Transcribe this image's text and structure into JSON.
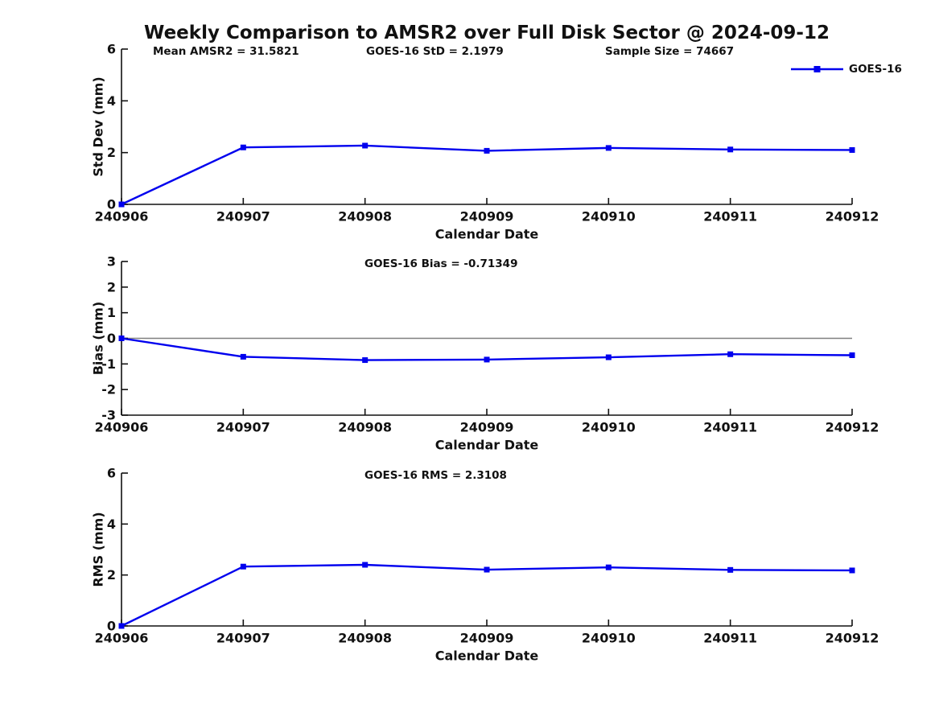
{
  "figure": {
    "title": "Weekly Comparison to AMSR2 over Full Disk Sector @ 2024-09-12",
    "background_color": "#ffffff",
    "series_color": "#0000ee",
    "axis_color": "#111111",
    "zero_line_color": "#808080",
    "legend": {
      "label": "GOES-16",
      "marker": "square",
      "position": "top-right"
    }
  },
  "chart_data": [
    {
      "type": "line",
      "ylabel": "Std Dev (mm)",
      "xlabel": "Calendar Date",
      "ylim": [
        0,
        6
      ],
      "yticks": [
        0,
        2,
        4,
        6
      ],
      "categories": [
        "240906",
        "240907",
        "240908",
        "240909",
        "240910",
        "240911",
        "240912"
      ],
      "annotations": [
        "Mean AMSR2 = 31.5821",
        "GOES-16 StD = 2.1979",
        "Sample Size = 74667"
      ],
      "series": [
        {
          "name": "GOES-16",
          "marker": "square",
          "values": [
            0,
            2.2,
            2.27,
            2.07,
            2.18,
            2.12,
            2.1
          ]
        }
      ],
      "legend_visible": true,
      "zero_line": false,
      "grid": false
    },
    {
      "type": "line",
      "ylabel": "Bias (mm)",
      "xlabel": "Calendar Date",
      "ylim": [
        -3,
        3
      ],
      "yticks": [
        -3,
        -2,
        -1,
        0,
        1,
        2,
        3
      ],
      "categories": [
        "240906",
        "240907",
        "240908",
        "240909",
        "240910",
        "240911",
        "240912"
      ],
      "annotations": [
        "GOES-16 Bias  = -0.71349"
      ],
      "series": [
        {
          "name": "GOES-16",
          "marker": "square",
          "values": [
            0,
            -0.72,
            -0.85,
            -0.83,
            -0.74,
            -0.62,
            -0.66
          ]
        }
      ],
      "legend_visible": false,
      "zero_line": true,
      "grid": false
    },
    {
      "type": "line",
      "ylabel": "RMS (mm)",
      "xlabel": "Calendar Date",
      "ylim": [
        0,
        6
      ],
      "yticks": [
        0,
        2,
        4,
        6
      ],
      "categories": [
        "240906",
        "240907",
        "240908",
        "240909",
        "240910",
        "240911",
        "240912"
      ],
      "annotations": [
        "GOES-16 RMS = 2.3108"
      ],
      "series": [
        {
          "name": "GOES-16",
          "marker": "square",
          "values": [
            0,
            2.33,
            2.4,
            2.21,
            2.3,
            2.2,
            2.18
          ]
        }
      ],
      "legend_visible": false,
      "zero_line": false,
      "grid": false
    }
  ]
}
